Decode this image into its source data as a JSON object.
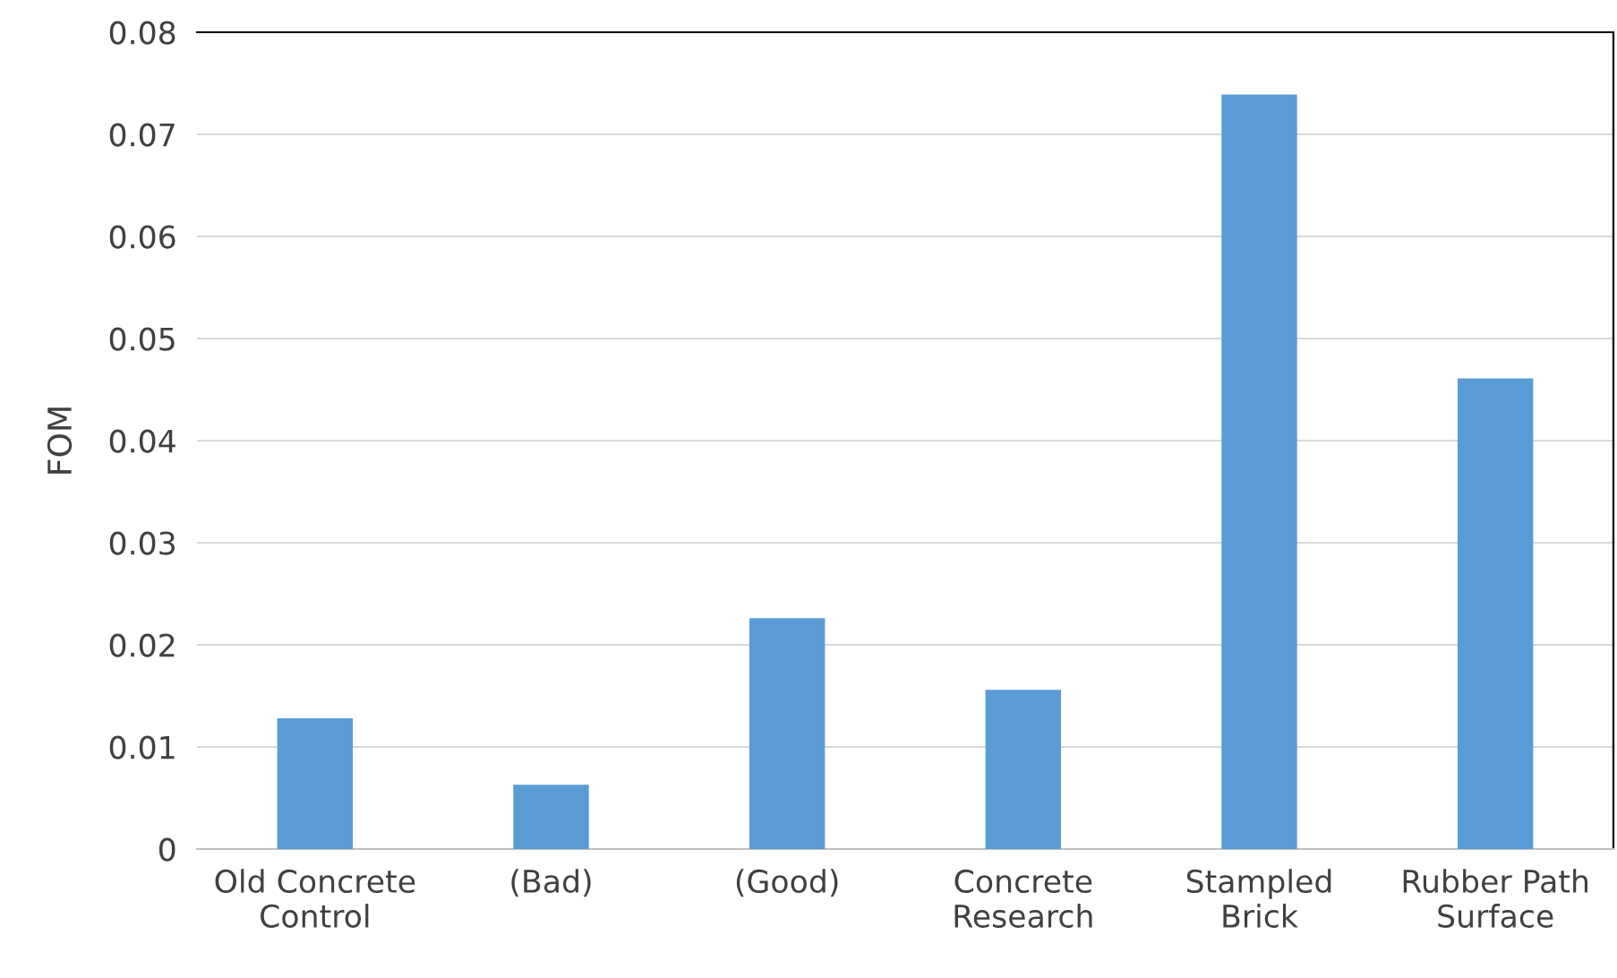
{
  "chart_data": {
    "type": "bar",
    "ylabel": "FOM",
    "categories": [
      "Old Concrete\nControl",
      "(Bad)",
      "(Good)",
      "Concrete\nResearch",
      "Stampled\nBrick",
      "Rubber Path\nSurface"
    ],
    "values": [
      0.0128,
      0.0063,
      0.0226,
      0.0156,
      0.0739,
      0.0461
    ],
    "color": "#5b9bd5",
    "ylim": [
      0,
      0.08
    ],
    "yticks": [
      {
        "value": 0,
        "label": "0"
      },
      0.01,
      0.02,
      0.03,
      0.04,
      0.05,
      0.06,
      0.07,
      0.08
    ],
    "grid": "y"
  }
}
